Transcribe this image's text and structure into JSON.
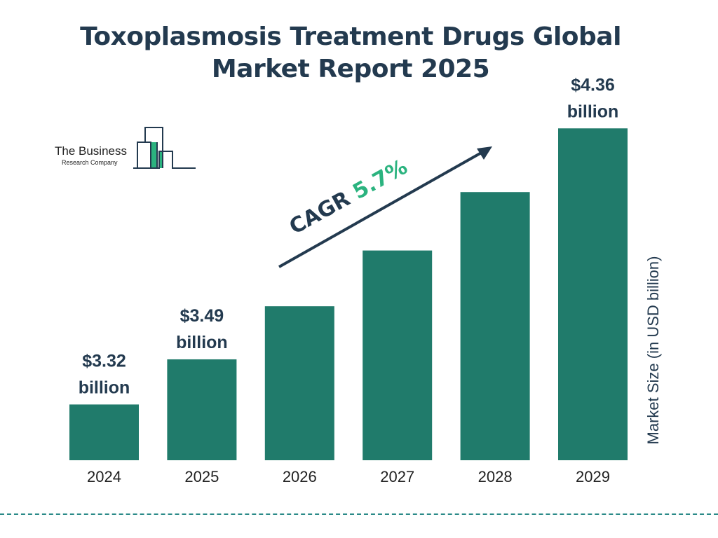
{
  "title": "Toxoplasmosis Treatment Drugs Global Market Report 2025",
  "logo": {
    "line1": "The Business",
    "line2": "Research Company"
  },
  "chart_data": {
    "type": "bar",
    "title": "Toxoplasmosis Treatment Drugs Global Market Report 2025",
    "categories": [
      "2024",
      "2025",
      "2026",
      "2027",
      "2028",
      "2029"
    ],
    "values": [
      3.32,
      3.49,
      3.69,
      3.9,
      4.12,
      4.36
    ],
    "data_labels": [
      {
        "category": "2024",
        "line1": "$3.32",
        "line2": "billion"
      },
      {
        "category": "2025",
        "line1": "$3.49",
        "line2": "billion"
      },
      {
        "category": "2029",
        "line1": "$4.36",
        "line2": "billion"
      }
    ],
    "ylabel": "Market Size (in USD billion)",
    "xlabel": "",
    "annotation": {
      "label": "CAGR",
      "value": "5.7%"
    },
    "grid": false,
    "colors": {
      "bar": "#207b6b",
      "text": "#233a4f",
      "cagr": "#2bb37f"
    }
  }
}
